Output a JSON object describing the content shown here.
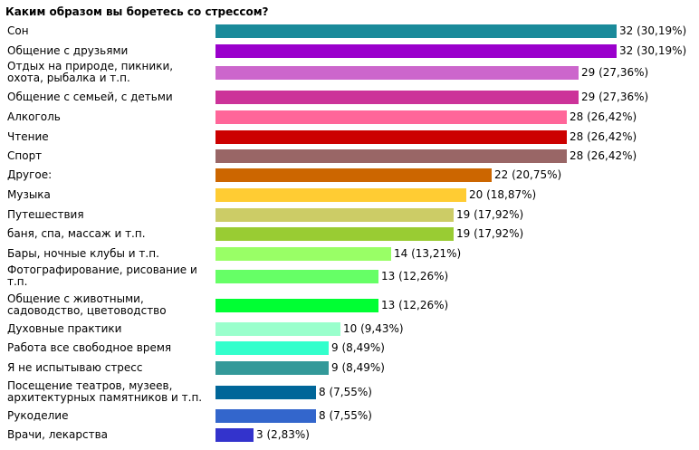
{
  "chart_data": {
    "type": "bar",
    "orientation": "horizontal",
    "title": "Каким образом вы боретесь со стрессом?",
    "xlim": [
      0,
      32
    ],
    "grid": false,
    "categories": [
      "Сон",
      "Общение с друзьями",
      "Отдых на природе, пикники, охота, рыбалка и т.п.",
      "Общение с семьей, с детьми",
      "Алкоголь",
      "Чтение",
      "Спорт",
      "Другое:",
      "Музыка",
      "Путешествия",
      "баня, спа, массаж и т.п.",
      "Бары, ночные клубы и т.п.",
      "Фотографирование, рисование и т.п.",
      "Общение с животными, садоводство, цветоводство",
      "Духовные практики",
      "Работа все свободное время",
      "Я не испытываю стресс",
      "Посещение театров, музеев, архитектурных памятников и т.п.",
      "Рукоделие",
      "Врачи, лекарства"
    ],
    "values": [
      32,
      32,
      29,
      29,
      28,
      28,
      28,
      22,
      20,
      19,
      19,
      14,
      13,
      13,
      10,
      9,
      9,
      8,
      8,
      3
    ],
    "value_labels": [
      "32 (30,19%)",
      "32 (30,19%)",
      "29 (27,36%)",
      "29 (27,36%)",
      "28 (26,42%)",
      "28 (26,42%)",
      "28 (26,42%)",
      "22 (20,75%)",
      "20 (18,87%)",
      "19 (17,92%)",
      "19 (17,92%)",
      "14 (13,21%)",
      "13 (12,26%)",
      "13 (12,26%)",
      "10 (9,43%)",
      "9 (8,49%)",
      "9 (8,49%)",
      "8 (7,55%)",
      "8 (7,55%)",
      "3 (2,83%)"
    ],
    "colors": [
      "#1a8a9a",
      "#9a00cc",
      "#cc66cc",
      "#cc3399",
      "#ff6699",
      "#cc0000",
      "#996666",
      "#cc6600",
      "#ffcc33",
      "#cccc66",
      "#99cc33",
      "#99ff66",
      "#66ff66",
      "#00ff33",
      "#99ffcc",
      "#33ffcc",
      "#339999",
      "#006699",
      "#3366cc",
      "#3333cc"
    ]
  }
}
